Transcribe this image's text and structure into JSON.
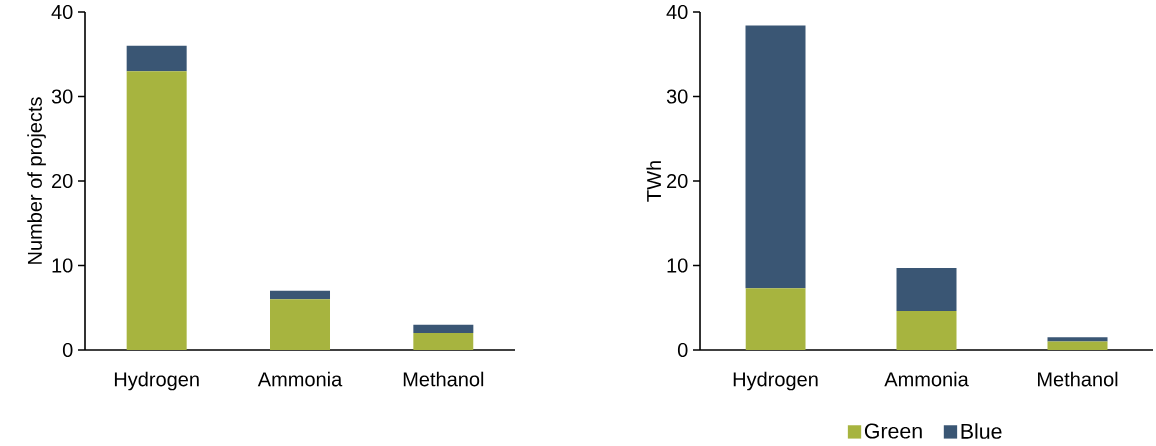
{
  "chart_data": [
    {
      "type": "bar",
      "stacked": true,
      "ylabel": "Number of projects",
      "categories": [
        "Hydrogen",
        "Ammonia",
        "Methanol"
      ],
      "ylim": [
        0,
        40
      ],
      "yticks": [
        0,
        10,
        20,
        30,
        40
      ],
      "legend": false,
      "series": [
        {
          "color": "#a7b43f",
          "values": [
            33,
            6,
            2
          ]
        },
        {
          "color": "#3a5674",
          "values": [
            3,
            1,
            1
          ]
        }
      ]
    },
    {
      "type": "bar",
      "stacked": true,
      "ylabel": "TWh",
      "categories": [
        "Hydrogen",
        "Ammonia",
        "Methanol"
      ],
      "ylim": [
        0,
        40
      ],
      "yticks": [
        0,
        10,
        20,
        30,
        40
      ],
      "legend": "bottom",
      "series": [
        {
          "name": "Green",
          "color": "#a7b43f",
          "values": [
            7.3,
            4.6,
            1.0
          ]
        },
        {
          "name": "Blue",
          "color": "#3a5674",
          "values": [
            31.1,
            5.1,
            0.5
          ]
        }
      ]
    }
  ]
}
